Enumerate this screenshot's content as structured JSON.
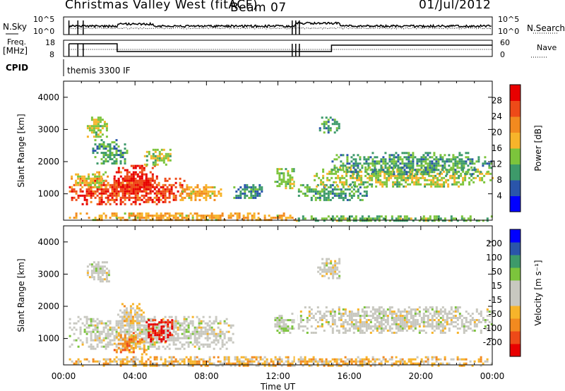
{
  "header": {
    "station": "Christmas Valley West (fitACF)",
    "beam": "Beam 07",
    "date": "01/Jul/2012"
  },
  "strip": {
    "nsky_label": "N.Sky",
    "nsky_ticks": [
      "10^5",
      "10^0"
    ],
    "nsearch_label": "N.Search",
    "nsearch_ticks": [
      "10^5",
      "10^0"
    ],
    "freq_label": [
      "Freq.",
      "[MHz]"
    ],
    "freq_ticks": [
      "18",
      "8"
    ],
    "nave_label": "Nave",
    "nave_ticks": [
      "60",
      "0"
    ],
    "cpid_label": "CPID",
    "cpid_value": "themis 3300 IF"
  },
  "colors": {
    "power": [
      "#0000ff",
      "#2a55aa",
      "#3d9a6a",
      "#7cc43c",
      "#f7b42a",
      "#f28a1f",
      "#ee4a18",
      "#e80000"
    ],
    "velocity": [
      "#e80000",
      "#ee4a18",
      "#f28a1f",
      "#f7b42a",
      "#c8c8c0",
      "#c8c8c0",
      "#7cc43c",
      "#3d9a6a",
      "#2a55aa",
      "#0000ff"
    ]
  },
  "chart_data": [
    {
      "type": "heatmap",
      "name": "power",
      "title": "",
      "xlabel": "",
      "ylabel": "Slant Range [km]",
      "xlim": [
        "00:00",
        "24:00"
      ],
      "ylim": [
        180,
        4500
      ],
      "x_ticks": [
        "00:00",
        "04:00",
        "08:00",
        "12:00",
        "16:00",
        "20:00",
        "00:00"
      ],
      "y_ticks": [
        1000,
        2000,
        3000,
        4000
      ],
      "colorbar_label": "Power [dB]",
      "colorbar_ticks": [
        "28",
        "24",
        "20",
        "16",
        "12",
        "8",
        "4"
      ],
      "scale_range": [
        0,
        30
      ],
      "echo_regions": [
        {
          "t": [
            0.3,
            6.8
          ],
          "range": [
            700,
            1500
          ],
          "value": 25
        },
        {
          "t": [
            6.5,
            8.8
          ],
          "range": [
            800,
            1300
          ],
          "value": 18
        },
        {
          "t": [
            2.8,
            5.2
          ],
          "range": [
            1000,
            1900
          ],
          "value": 26
        },
        {
          "t": [
            0.4,
            2.5
          ],
          "range": [
            1200,
            1700
          ],
          "value": 16
        },
        {
          "t": [
            1.3,
            2.4
          ],
          "range": [
            2800,
            3400
          ],
          "value": 14
        },
        {
          "t": [
            4.5,
            6.0
          ],
          "range": [
            1900,
            2400
          ],
          "value": 14
        },
        {
          "t": [
            1.6,
            3.5
          ],
          "range": [
            1950,
            2700
          ],
          "value": 10
        },
        {
          "t": [
            9.5,
            11.2
          ],
          "range": [
            850,
            1300
          ],
          "value": 9
        },
        {
          "t": [
            11.8,
            12.9
          ],
          "range": [
            1150,
            1800
          ],
          "value": 13
        },
        {
          "t": [
            13.0,
            17.0
          ],
          "range": [
            800,
            1300
          ],
          "value": 10
        },
        {
          "t": [
            14.0,
            24.0
          ],
          "range": [
            1200,
            1850
          ],
          "value": 14
        },
        {
          "t": [
            15.0,
            24.0
          ],
          "range": [
            1600,
            2300
          ],
          "value": 10
        },
        {
          "t": [
            14.3,
            15.4
          ],
          "range": [
            2900,
            3400
          ],
          "value": 10
        },
        {
          "t": [
            0.3,
            13.0
          ],
          "range": [
            180,
            420
          ],
          "value": 18
        },
        {
          "t": [
            13.0,
            24.0
          ],
          "range": [
            180,
            330
          ],
          "value": 12
        }
      ]
    },
    {
      "type": "heatmap",
      "name": "velocity",
      "title": "",
      "xlabel": "Time UT",
      "ylabel": "Slant Range [km]",
      "xlim": [
        "00:00",
        "24:00"
      ],
      "ylim": [
        180,
        4500
      ],
      "x_ticks": [
        "00:00",
        "04:00",
        "08:00",
        "12:00",
        "16:00",
        "20:00",
        "00:00"
      ],
      "y_ticks": [
        1000,
        2000,
        3000,
        4000
      ],
      "colorbar_label": "Velocity [m s⁻¹]",
      "colorbar_ticks": [
        "200",
        "100",
        "50",
        "15",
        "-15",
        "-50",
        "-100",
        "-200"
      ],
      "scale_range": [
        -250,
        250
      ],
      "echo_regions": [
        {
          "t": [
            0.3,
            9.5
          ],
          "range": [
            700,
            1700
          ],
          "value": 0
        },
        {
          "t": [
            2.8,
            4.6
          ],
          "range": [
            500,
            1200
          ],
          "value": -120
        },
        {
          "t": [
            4.6,
            6.2
          ],
          "range": [
            900,
            1600
          ],
          "value": -220
        },
        {
          "t": [
            3.0,
            4.5
          ],
          "range": [
            1400,
            2100
          ],
          "value": -45
        },
        {
          "t": [
            1.3,
            2.6
          ],
          "range": [
            2800,
            3400
          ],
          "value": 0
        },
        {
          "t": [
            13.0,
            24.0
          ],
          "range": [
            1200,
            2000
          ],
          "value": 0
        },
        {
          "t": [
            14.2,
            15.5
          ],
          "range": [
            2900,
            3500
          ],
          "value": 0
        },
        {
          "t": [
            11.8,
            12.9
          ],
          "range": [
            1200,
            1800
          ],
          "value": 30
        },
        {
          "t": [
            0.3,
            24.0
          ],
          "range": [
            180,
            450
          ],
          "value": -70
        }
      ]
    }
  ]
}
